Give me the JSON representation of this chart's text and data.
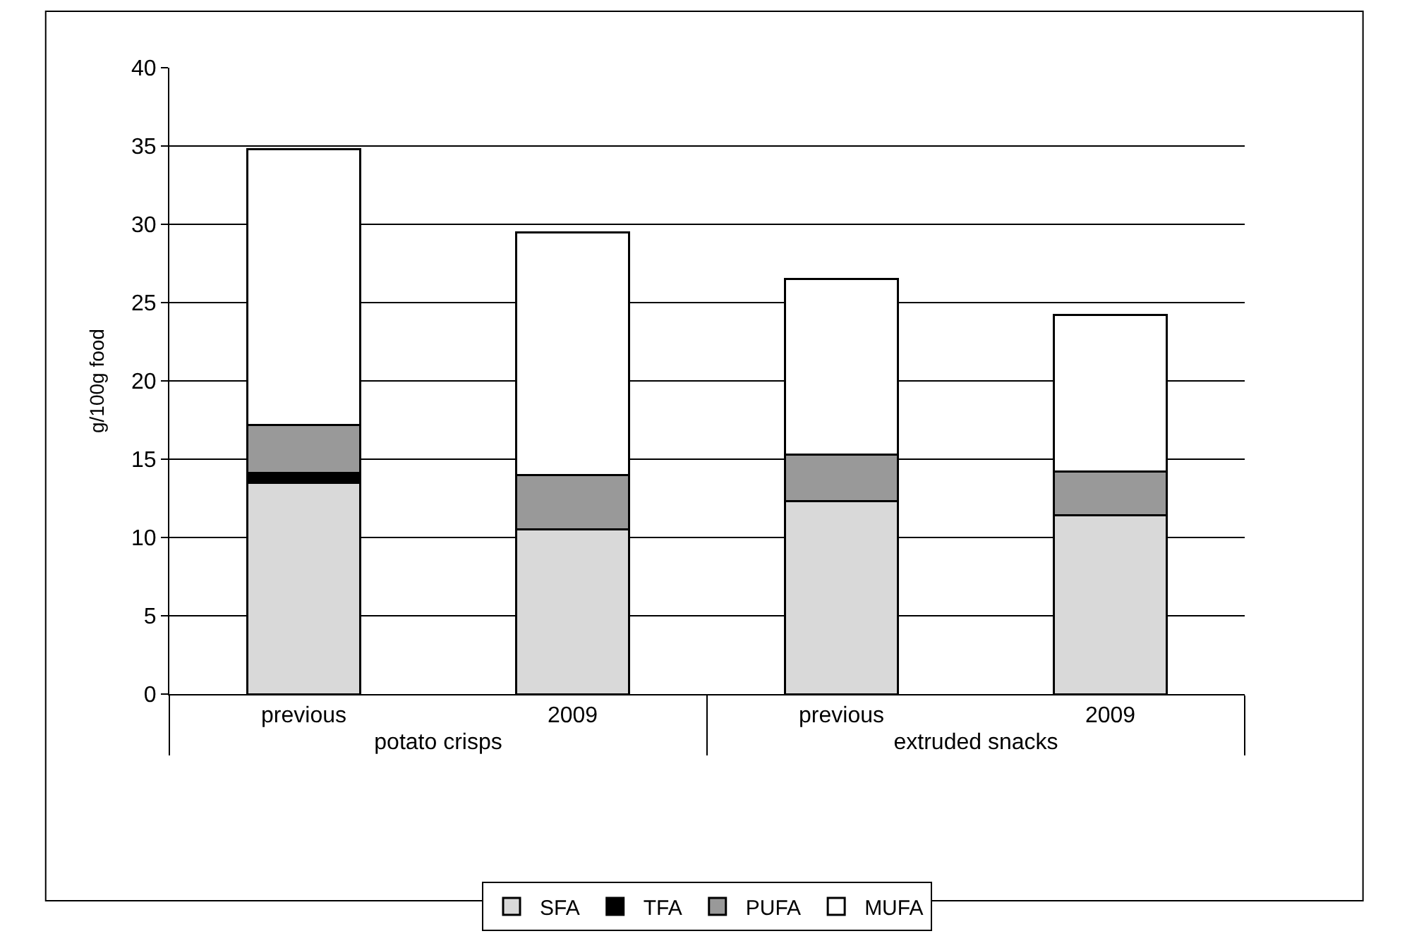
{
  "chart_data": {
    "type": "bar",
    "stacked": true,
    "ylabel": "g/100g food",
    "categories": [
      "previous",
      "2009",
      "previous",
      "2009"
    ],
    "annotations": [
      "potato crisps",
      "extruded snacks"
    ],
    "series": [
      {
        "name": "SFA",
        "color": "#d9d9d9",
        "values": [
          13.5,
          10.5,
          12.3,
          11.4
        ]
      },
      {
        "name": "TFA",
        "color": "#000000",
        "values": [
          0.6,
          0,
          0,
          0
        ]
      },
      {
        "name": "PUFA",
        "color": "#999999",
        "values": [
          3.1,
          3.5,
          3.0,
          2.8
        ]
      },
      {
        "name": "MUFA",
        "color": "#ffffff",
        "values": [
          17.6,
          15.5,
          11.2,
          10.0
        ]
      }
    ],
    "ylim": [
      0,
      40
    ],
    "yticks": [
      0,
      5,
      10,
      15,
      20,
      25,
      30,
      35,
      40
    ],
    "grid": "y",
    "legend": "bottom"
  }
}
